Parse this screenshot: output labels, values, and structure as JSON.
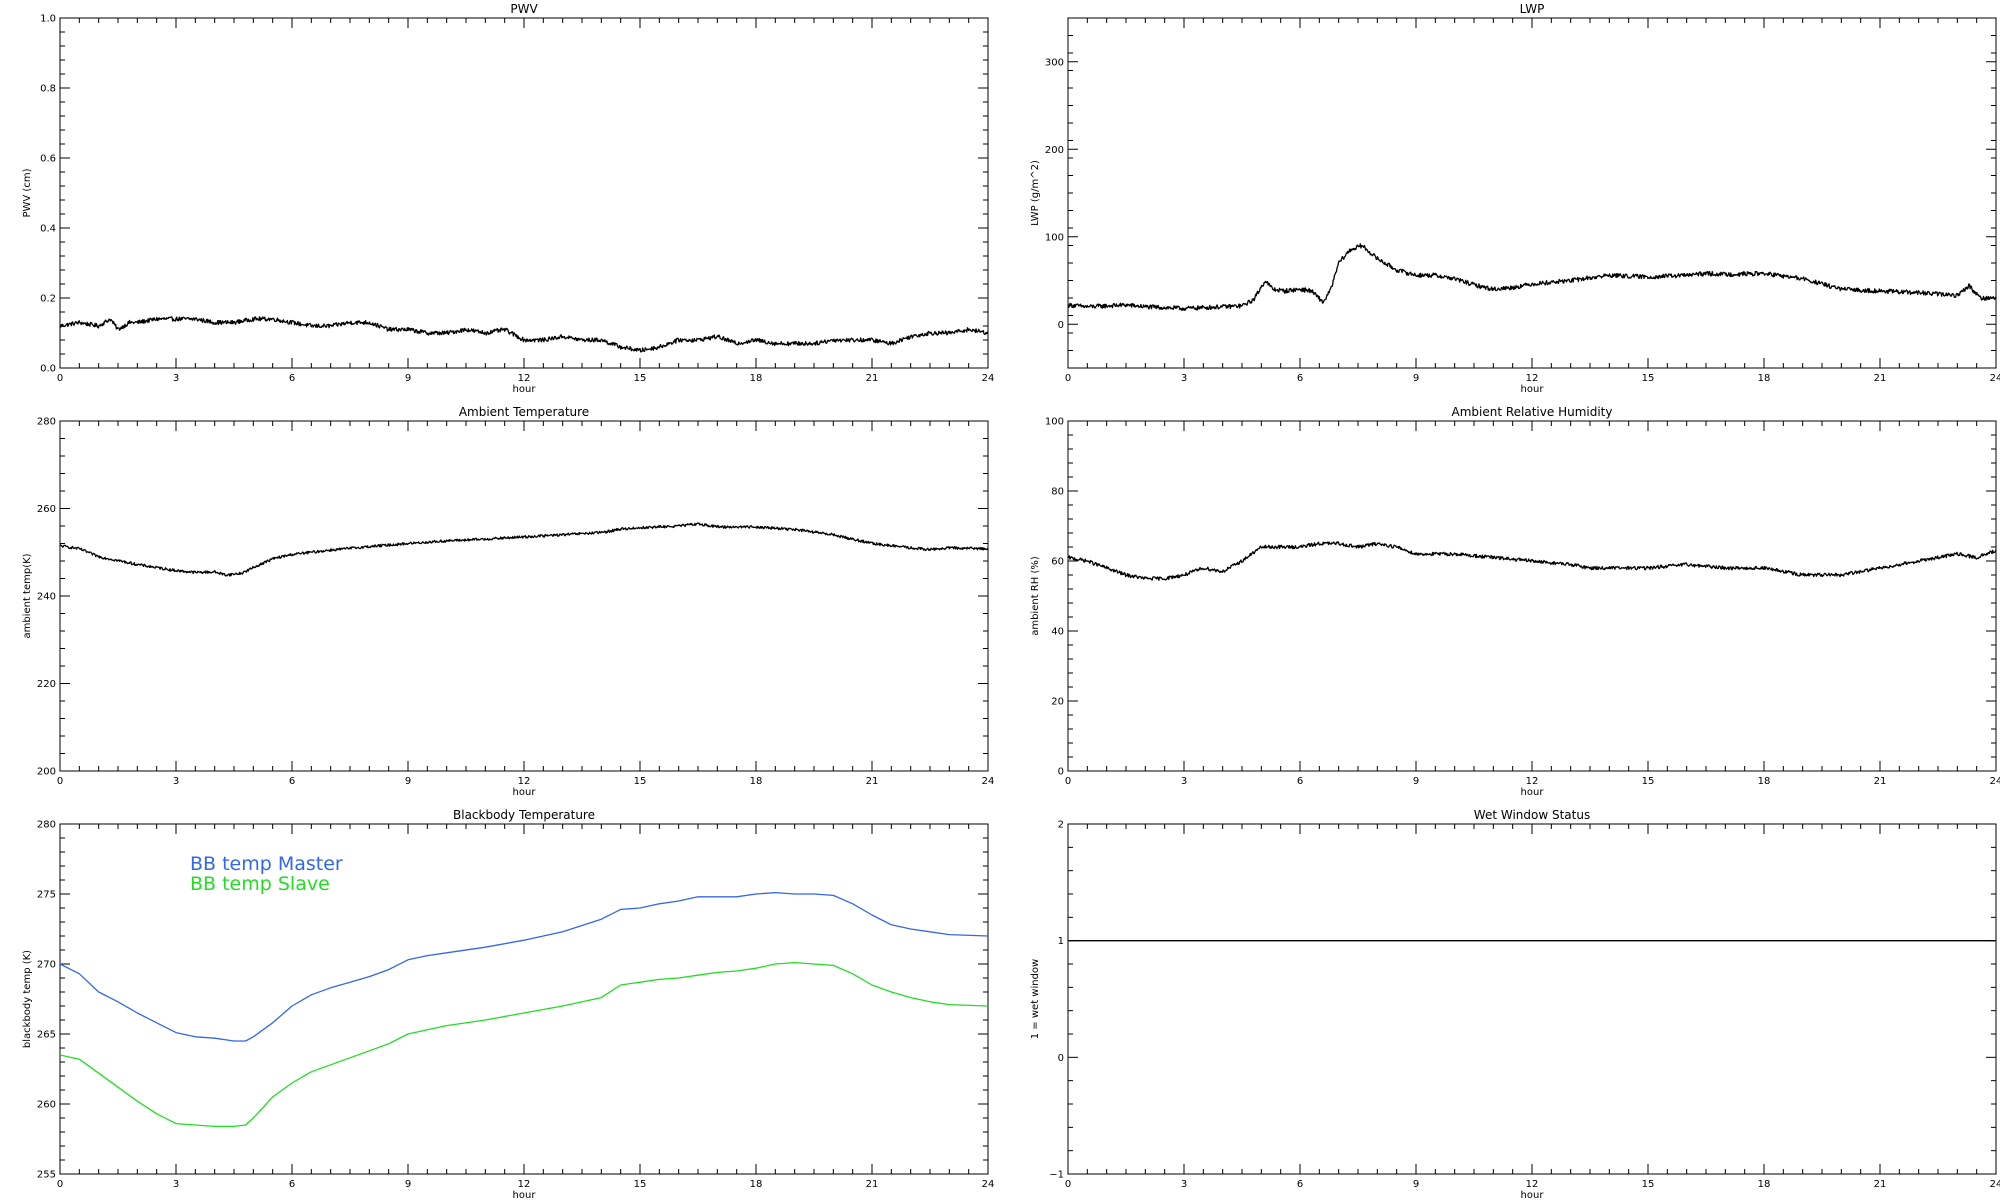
{
  "chart_data": [
    {
      "type": "line",
      "title": "PWV",
      "xlabel": "hour",
      "ylabel": "PWV (cm)",
      "xlim": [
        0,
        24
      ],
      "ylim": [
        0,
        1.0
      ],
      "xticks": [
        0,
        3,
        6,
        9,
        12,
        15,
        18,
        21,
        24
      ],
      "yticks": [
        0.0,
        0.2,
        0.4,
        0.6,
        0.8,
        1.0
      ],
      "ytick_labels": [
        "0.0",
        "0.2",
        "0.4",
        "0.6",
        "0.8",
        "1.0"
      ],
      "noise": 0.006,
      "series": [
        {
          "color": "#000000",
          "x": [
            0,
            0.5,
            1,
            1.3,
            1.5,
            1.8,
            2,
            2.5,
            3,
            3.5,
            4,
            4.5,
            5,
            5.5,
            6,
            6.5,
            7,
            7.5,
            8,
            8.5,
            9,
            9.5,
            10,
            10.5,
            11,
            11.5,
            12,
            12.5,
            13,
            13.5,
            14,
            14.5,
            15,
            15.5,
            16,
            16.5,
            17,
            17.5,
            18,
            18.5,
            19,
            19.5,
            20,
            20.5,
            21,
            21.5,
            22,
            22.5,
            23,
            23.5,
            24
          ],
          "values": [
            0.12,
            0.13,
            0.12,
            0.14,
            0.11,
            0.13,
            0.13,
            0.14,
            0.14,
            0.14,
            0.13,
            0.13,
            0.14,
            0.14,
            0.13,
            0.12,
            0.12,
            0.13,
            0.13,
            0.11,
            0.11,
            0.1,
            0.1,
            0.11,
            0.1,
            0.11,
            0.08,
            0.08,
            0.09,
            0.08,
            0.08,
            0.06,
            0.05,
            0.06,
            0.08,
            0.08,
            0.09,
            0.07,
            0.08,
            0.07,
            0.07,
            0.07,
            0.08,
            0.08,
            0.08,
            0.07,
            0.09,
            0.1,
            0.1,
            0.11,
            0.1
          ]
        }
      ]
    },
    {
      "type": "line",
      "title": "LWP",
      "xlabel": "hour",
      "ylabel": "LWP (g/m^2)",
      "xlim": [
        0,
        24
      ],
      "ylim": [
        -50,
        350
      ],
      "xticks": [
        0,
        3,
        6,
        9,
        12,
        15,
        18,
        21,
        24
      ],
      "yticks": [
        0,
        100,
        200,
        300
      ],
      "ytick_labels": [
        "0",
        "100",
        "200",
        "300"
      ],
      "noise": 2.5,
      "series": [
        {
          "color": "#000000",
          "x": [
            0,
            0.5,
            1,
            1.5,
            2,
            2.5,
            3,
            3.5,
            4,
            4.5,
            4.8,
            5.1,
            5.3,
            5.6,
            6,
            6.3,
            6.6,
            6.8,
            7.0,
            7.3,
            7.6,
            8.0,
            8.5,
            9.0,
            9.5,
            10.0,
            10.5,
            11.0,
            11.5,
            12.0,
            12.5,
            13.0,
            14.0,
            15.0,
            16.0,
            16.5,
            17.0,
            18.0,
            19.0,
            19.5,
            20.0,
            21.0,
            22.0,
            23.0,
            23.3,
            23.6,
            24
          ],
          "values": [
            22,
            20,
            21,
            22,
            20,
            19,
            18,
            19,
            20,
            21,
            28,
            50,
            40,
            38,
            40,
            38,
            25,
            40,
            70,
            85,
            90,
            75,
            62,
            56,
            56,
            52,
            45,
            40,
            42,
            46,
            48,
            50,
            56,
            54,
            56,
            58,
            57,
            58,
            52,
            46,
            40,
            38,
            36,
            33,
            44,
            30,
            30
          ]
        }
      ]
    },
    {
      "type": "line",
      "title": "Ambient Temperature",
      "xlabel": "hour",
      "ylabel": "ambient temp(K)",
      "xlim": [
        0,
        24
      ],
      "ylim": [
        200,
        280
      ],
      "xticks": [
        0,
        3,
        6,
        9,
        12,
        15,
        18,
        21,
        24
      ],
      "yticks": [
        200,
        220,
        240,
        260,
        280
      ],
      "ytick_labels": [
        "200",
        "220",
        "240",
        "260",
        "280"
      ],
      "noise": 0.3,
      "series": [
        {
          "color": "#000000",
          "x": [
            0,
            0.5,
            1,
            2,
            3,
            3.5,
            4,
            4.3,
            4.7,
            5.0,
            5.5,
            6.0,
            7,
            8,
            9,
            10,
            11,
            12,
            13,
            14,
            14.5,
            15,
            15.5,
            16,
            16.5,
            17,
            18,
            19,
            20,
            20.5,
            21,
            22,
            22.5,
            23,
            24
          ],
          "values": [
            251.5,
            250.8,
            249,
            247.2,
            245.8,
            245.4,
            245.5,
            244.8,
            245.2,
            246.5,
            248.5,
            249.5,
            250.5,
            251.3,
            252.0,
            252.6,
            253.0,
            253.5,
            254.0,
            254.5,
            255.3,
            255.6,
            255.8,
            256.0,
            256.5,
            255.8,
            255.8,
            255.2,
            254.0,
            253.0,
            252.0,
            251.0,
            250.6,
            251.0,
            250.8
          ]
        }
      ]
    },
    {
      "type": "line",
      "title": "Ambient Relative Humidity",
      "xlabel": "hour",
      "ylabel": "ambient RH (%)",
      "xlim": [
        0,
        24
      ],
      "ylim": [
        0,
        100
      ],
      "xticks": [
        0,
        3,
        6,
        9,
        12,
        15,
        18,
        21,
        24
      ],
      "yticks": [
        0,
        20,
        40,
        60,
        80,
        100
      ],
      "ytick_labels": [
        "0",
        "20",
        "40",
        "60",
        "80",
        "100"
      ],
      "noise": 0.5,
      "series": [
        {
          "color": "#000000",
          "x": [
            0,
            0.5,
            1,
            1.5,
            2,
            2.5,
            3,
            3.5,
            4,
            4.5,
            5,
            5.5,
            6,
            6.5,
            7,
            7.5,
            8,
            8.5,
            9,
            10,
            11,
            12,
            13,
            13.5,
            14,
            15,
            16,
            17,
            18,
            19,
            20,
            20.5,
            21,
            22,
            23,
            23.5,
            24
          ],
          "values": [
            61,
            60,
            58,
            56,
            55,
            55,
            56,
            58,
            57,
            60,
            64,
            64,
            64,
            65,
            65,
            64,
            65,
            64,
            62,
            62,
            61,
            60,
            59,
            58,
            58,
            58,
            59,
            58,
            58,
            56,
            56,
            57,
            58,
            60,
            62,
            61,
            63
          ]
        }
      ]
    },
    {
      "type": "line",
      "title": "Blackbody Temperature",
      "xlabel": "hour",
      "ylabel": "blackbody temp (K)",
      "xlim": [
        0,
        24
      ],
      "ylim": [
        255,
        280
      ],
      "xticks": [
        0,
        3,
        6,
        9,
        12,
        15,
        18,
        21,
        24
      ],
      "yticks": [
        255,
        260,
        265,
        270,
        275,
        280
      ],
      "ytick_labels": [
        "255",
        "260",
        "265",
        "270",
        "275",
        "280"
      ],
      "noise": 0,
      "legend": [
        "BB temp Master",
        "BB temp Slave"
      ],
      "series": [
        {
          "name": "BB temp Master",
          "color": "#3366ee",
          "x": [
            0,
            0.5,
            1,
            1.5,
            2,
            2.5,
            3,
            3.5,
            4,
            4.5,
            4.8,
            5.0,
            5.5,
            6,
            6.5,
            7,
            7.5,
            8,
            8.5,
            9,
            9.5,
            10,
            11,
            12,
            13,
            14,
            14.5,
            15,
            15.5,
            16,
            16.5,
            17,
            17.5,
            18,
            18.5,
            19,
            19.5,
            20,
            20.5,
            21,
            21.5,
            22,
            22.5,
            23,
            24
          ],
          "values": [
            270,
            269.3,
            268,
            267.3,
            266.5,
            265.8,
            265.1,
            264.8,
            264.7,
            264.5,
            264.5,
            264.8,
            265.8,
            267,
            267.8,
            268.3,
            268.7,
            269.1,
            269.6,
            270.3,
            270.6,
            270.8,
            271.2,
            271.7,
            272.3,
            273.2,
            273.9,
            274.0,
            274.3,
            274.5,
            274.8,
            274.8,
            274.8,
            275.0,
            275.1,
            275.0,
            275.0,
            274.9,
            274.3,
            273.5,
            272.8,
            272.5,
            272.3,
            272.1,
            272.0
          ]
        },
        {
          "name": "BB temp Slave",
          "color": "#22dd22",
          "x": [
            0,
            0.5,
            1,
            1.5,
            2,
            2.5,
            3,
            3.5,
            4,
            4.5,
            4.8,
            5.0,
            5.5,
            6,
            6.5,
            7,
            7.5,
            8,
            8.5,
            9,
            9.5,
            10,
            11,
            12,
            13,
            14,
            14.5,
            15,
            15.5,
            16,
            16.5,
            17,
            17.5,
            18,
            18.5,
            19,
            19.5,
            20,
            20.5,
            21,
            21.5,
            22,
            22.5,
            23,
            24
          ],
          "values": [
            263.5,
            263.2,
            262.2,
            261.2,
            260.2,
            259.3,
            258.6,
            258.5,
            258.4,
            258.4,
            258.5,
            259.0,
            260.5,
            261.5,
            262.3,
            262.8,
            263.3,
            263.8,
            264.3,
            265.0,
            265.3,
            265.6,
            266.0,
            266.5,
            267.0,
            267.6,
            268.5,
            268.7,
            268.9,
            269.0,
            269.2,
            269.4,
            269.5,
            269.7,
            270.0,
            270.1,
            270.0,
            269.9,
            269.3,
            268.5,
            268.0,
            267.6,
            267.3,
            267.1,
            267.0
          ]
        }
      ]
    },
    {
      "type": "line",
      "title": "Wet Window Status",
      "xlabel": "hour",
      "ylabel": "1 = wet window",
      "xlim": [
        0,
        24
      ],
      "ylim": [
        -1,
        2
      ],
      "xticks": [
        0,
        3,
        6,
        9,
        12,
        15,
        18,
        21,
        24
      ],
      "yticks": [
        -1,
        0,
        1,
        2
      ],
      "ytick_labels": [
        "−1",
        "0",
        "1",
        "2"
      ],
      "noise": 0,
      "series": [
        {
          "color": "#000000",
          "x": [
            0,
            24
          ],
          "values": [
            1,
            1
          ]
        }
      ]
    }
  ]
}
